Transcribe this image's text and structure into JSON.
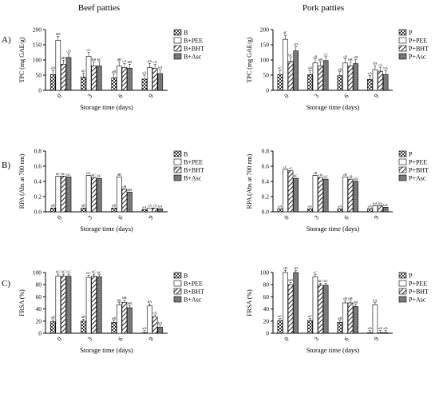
{
  "column_titles": [
    "Beef patties",
    "Pork patties"
  ],
  "row_labels": [
    "A)",
    "B)",
    "C)"
  ],
  "chart_data": [
    {
      "id": "A-beef",
      "type": "bar",
      "title": "",
      "ylabel": "TPC (mg GAE/g)",
      "xlabel": "Storage time (days)",
      "categories": [
        "0",
        "3",
        "6",
        "9"
      ],
      "ylim": [
        0,
        200
      ],
      "yticks": [
        0,
        50,
        100,
        150,
        200
      ],
      "legend": [
        "B",
        "B+PEE",
        "B+BHT",
        "B+Asc"
      ],
      "series": [
        {
          "name": "B",
          "values": [
            52,
            44,
            41,
            37
          ],
          "labels": [
            "aD",
            "aC",
            "aB",
            "aA"
          ]
        },
        {
          "name": "B+PEE",
          "values": [
            165,
            112,
            80,
            75
          ],
          "labels": [
            "dD",
            "cC",
            "dB",
            "dA"
          ]
        },
        {
          "name": "B+BHT",
          "values": [
            86,
            80,
            75,
            73
          ],
          "labels": [
            "bD",
            "bB",
            "cA",
            "cA"
          ]
        },
        {
          "name": "B+Asc",
          "values": [
            108,
            80,
            73,
            55
          ],
          "labels": [
            "cD",
            "bC",
            "bB",
            "bA"
          ]
        }
      ]
    },
    {
      "id": "A-pork",
      "type": "bar",
      "title": "",
      "ylabel": "TPC (mg GAE/g)",
      "xlabel": "Storage time (days)",
      "categories": [
        "0",
        "3",
        "6",
        "9"
      ],
      "ylim": [
        0,
        200
      ],
      "yticks": [
        0,
        50,
        100,
        150,
        200
      ],
      "legend": [
        "P",
        "P+PEE",
        "P+BHT",
        "P+Asc"
      ],
      "series": [
        {
          "name": "P",
          "values": [
            52,
            52,
            48,
            36
          ],
          "labels": [
            "aC",
            "aB",
            "aB",
            "aA"
          ]
        },
        {
          "name": "P+PEE",
          "values": [
            168,
            90,
            90,
            68
          ],
          "labels": [
            "dC",
            "cB",
            "cB",
            "dA"
          ]
        },
        {
          "name": "P+BHT",
          "values": [
            95,
            80,
            80,
            63
          ],
          "labels": [
            "bC",
            "bB",
            "bB",
            "cA"
          ]
        },
        {
          "name": "P+Asc",
          "values": [
            130,
            98,
            88,
            52
          ],
          "labels": [
            "cD",
            "cC",
            "cB",
            "bA"
          ]
        }
      ]
    },
    {
      "id": "B-beef",
      "type": "bar",
      "title": "",
      "ylabel": "RPA (Abs at 700 nm)",
      "xlabel": "Storage time (days)",
      "categories": [
        "0",
        "3",
        "6",
        "9"
      ],
      "ylim": [
        0,
        0.8
      ],
      "yticks": [
        0,
        0.2,
        0.4,
        0.6,
        0.8
      ],
      "legend": [
        "B",
        "B+PEE",
        "B+BHT",
        "B+Asc"
      ],
      "series": [
        {
          "name": "B",
          "values": [
            0.05,
            0.05,
            0.05,
            0.03
          ],
          "labels": [
            "aB",
            "aB",
            "aB",
            "aA"
          ]
        },
        {
          "name": "B+PEE",
          "values": [
            0.47,
            0.48,
            0.46,
            0.05
          ],
          "labels": [
            "bC",
            "bC",
            "dB",
            "cA"
          ]
        },
        {
          "name": "B+BHT",
          "values": [
            0.47,
            0.45,
            0.3,
            0.05
          ],
          "labels": [
            "bC",
            "bC",
            "cB",
            "cA"
          ]
        },
        {
          "name": "B+Asc",
          "values": [
            0.46,
            0.44,
            0.26,
            0.04
          ],
          "labels": [
            "bC",
            "bC",
            "bB",
            "bA"
          ]
        }
      ]
    },
    {
      "id": "B-pork",
      "type": "bar",
      "title": "",
      "ylabel": "RPA (Abs at 700 nm)",
      "xlabel": "Storage time (days)",
      "categories": [
        "0",
        "3",
        "6",
        "9"
      ],
      "ylim": [
        0,
        0.8
      ],
      "yticks": [
        0,
        0.2,
        0.4,
        0.6,
        0.8
      ],
      "legend": [
        "P",
        "P+PEE",
        "P+BHT",
        "P+Asc"
      ],
      "series": [
        {
          "name": "P",
          "values": [
            0.04,
            0.04,
            0.04,
            0.04
          ],
          "labels": [
            "aA",
            "aA",
            "aA",
            "aA"
          ]
        },
        {
          "name": "P+PEE",
          "values": [
            0.56,
            0.48,
            0.46,
            0.08
          ],
          "labels": [
            "cC",
            "cB",
            "cB",
            "bA"
          ]
        },
        {
          "name": "P+BHT",
          "values": [
            0.54,
            0.45,
            0.43,
            0.08
          ],
          "labels": [
            "cC",
            "cB",
            "cB",
            "bA"
          ]
        },
        {
          "name": "P+Asc",
          "values": [
            0.44,
            0.43,
            0.4,
            0.06
          ],
          "labels": [
            "bC",
            "bC",
            "bB",
            "bA"
          ]
        }
      ]
    },
    {
      "id": "C-beef",
      "type": "bar",
      "title": "",
      "ylabel": "FRSA (%)",
      "xlabel": "Storage time (days)",
      "categories": [
        "0",
        "3",
        "6",
        "9"
      ],
      "ylim": [
        0,
        100
      ],
      "yticks": [
        0,
        20,
        40,
        60,
        80,
        100
      ],
      "legend": [
        "B",
        "B+PEE",
        "B+BHT",
        "B+Asc"
      ],
      "series": [
        {
          "name": "B",
          "values": [
            19,
            20,
            18,
            1
          ],
          "labels": [
            "aB",
            "aB",
            "aB",
            "aA"
          ]
        },
        {
          "name": "B+PEE",
          "values": [
            94,
            92,
            47,
            45
          ],
          "labels": [
            "bC",
            "bC",
            "bB",
            "dA"
          ]
        },
        {
          "name": "B+BHT",
          "values": [
            94,
            94,
            51,
            27
          ],
          "labels": [
            "bC",
            "bC",
            "bB",
            "cA"
          ]
        },
        {
          "name": "B+Asc",
          "values": [
            94,
            93,
            42,
            10
          ],
          "labels": [
            "bC",
            "bC",
            "bB",
            "bA"
          ]
        }
      ]
    },
    {
      "id": "C-pork",
      "type": "bar",
      "title": "",
      "ylabel": "FRSA (%)",
      "xlabel": "Storage time (days)",
      "categories": [
        "0",
        "3",
        "6",
        "9"
      ],
      "ylim": [
        0,
        100
      ],
      "yticks": [
        0,
        20,
        40,
        60,
        80,
        100
      ],
      "legend": [
        "P",
        "P+PEE",
        "P+BHT",
        "P+Asc"
      ],
      "series": [
        {
          "name": "P",
          "values": [
            21,
            21,
            18,
            1
          ],
          "labels": [
            "aC",
            "aC",
            "aB",
            "aA"
          ]
        },
        {
          "name": "P+PEE",
          "values": [
            100,
            93,
            50,
            47
          ],
          "labels": [
            "cD",
            "cC",
            "cB",
            "bA"
          ]
        },
        {
          "name": "P+BHT",
          "values": [
            80,
            79,
            50,
            1
          ],
          "labels": [
            "bD",
            "bC",
            "bB",
            "aA"
          ]
        },
        {
          "name": "P+Asc",
          "values": [
            100,
            79,
            44,
            1
          ],
          "labels": [
            "cD",
            "bC",
            "bB",
            "aA"
          ]
        }
      ]
    }
  ]
}
